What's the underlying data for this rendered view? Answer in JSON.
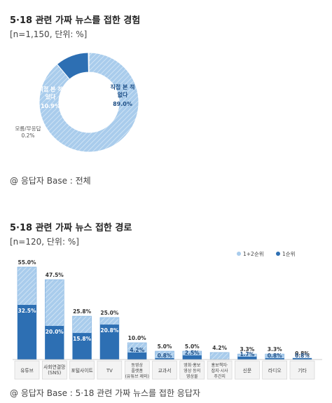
{
  "section1": {
    "title": "5·18 관련 가짜 뉴스를 접한 경험",
    "subtitle": "[n=1,150, 단위: %]",
    "base_note": "@ 응답자 Base : 전체"
  },
  "section2": {
    "title": "5·18 관련 가짜 뉴스 접한 경로",
    "subtitle": "[n=120, 단위: %]",
    "base_note": "@ 응답자 Base : 5·18 관련 가짜 뉴스를 접한 응답자"
  },
  "colors": {
    "light_hatch": "#a9ccec",
    "hatch_line": "#ffffff",
    "dark": "#2d6fb3",
    "text_dark": "#1f4f86"
  },
  "chart_data": [
    {
      "type": "pie",
      "title": "5·18 관련 가짜 뉴스를 접한 경험",
      "slices": [
        {
          "label": "직접 본 적 없다",
          "value": 89.0,
          "value_label": "89.0%"
        },
        {
          "label": "직접 본 적 있다",
          "value": 10.9,
          "value_label": "10.9%"
        },
        {
          "label": "모름/무응답",
          "value": 0.2,
          "value_label": "0.2%"
        }
      ]
    },
    {
      "type": "bar",
      "title": "5·18 관련 가짜 뉴스 접한 경로",
      "legend": [
        "1+2순위",
        "1순위"
      ],
      "legend_position": "top-right",
      "categories": [
        {
          "label": [
            "유튜브"
          ]
        },
        {
          "label": [
            "사회연결망",
            "(SNS)"
          ]
        },
        {
          "label": [
            "포털사이트"
          ]
        },
        {
          "label": [
            "TV"
          ]
        },
        {
          "label": [
            "동영상",
            "플랫폼",
            "(유튜브 제외)"
          ]
        },
        {
          "label": [
            "교과서"
          ]
        },
        {
          "label": [
            "영화·홍보",
            "영상 등의",
            "영상물"
          ]
        },
        {
          "label": [
            "홍보책자·",
            "잡지·시사",
            "주간지"
          ]
        },
        {
          "label": [
            "신문"
          ]
        },
        {
          "label": [
            "라디오"
          ]
        },
        {
          "label": [
            "기타"
          ]
        }
      ],
      "series": [
        {
          "name": "1+2순위",
          "values": [
            55.0,
            47.5,
            25.8,
            25.0,
            10.0,
            5.0,
            5.0,
            4.2,
            3.3,
            3.3,
            0.8
          ],
          "labels": [
            "55.0%",
            "47.5%",
            "25.8%",
            "25.0%",
            "10.0%",
            "5.0%",
            "5.0%",
            "4.2%",
            "3.3%",
            "3.3%",
            "0.8%"
          ]
        },
        {
          "name": "1순위",
          "values": [
            32.5,
            20.0,
            15.8,
            20.8,
            4.2,
            0.8,
            2.5,
            null,
            1.7,
            0.8,
            0.8
          ],
          "labels": [
            "32.5%",
            "20.0%",
            "15.8%",
            "20.8%",
            "4.2%",
            "0.8%",
            "2.5%",
            "",
            "1.7%",
            "0.8%",
            "0.8%"
          ]
        }
      ],
      "ylim": [
        0,
        60
      ]
    }
  ]
}
